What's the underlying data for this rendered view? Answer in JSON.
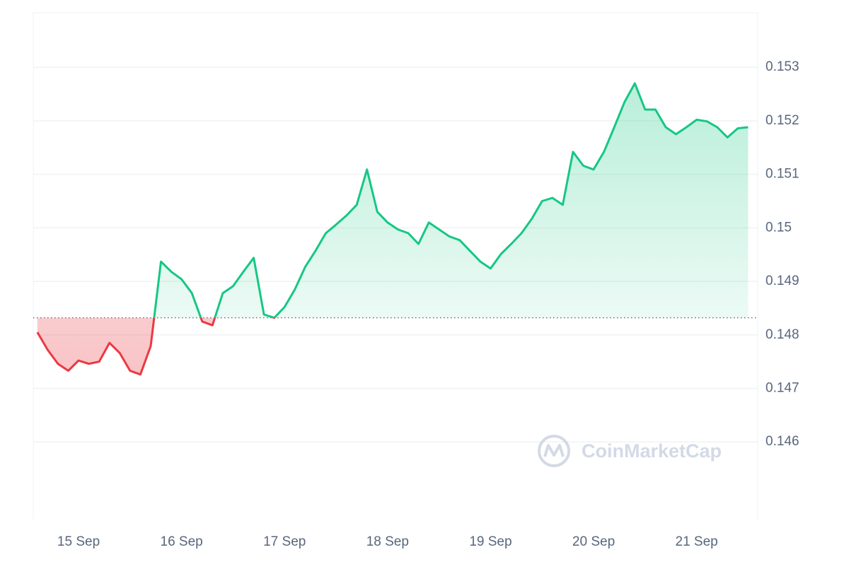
{
  "chart_data": {
    "type": "line",
    "categories": [
      null,
      null,
      null,
      null,
      "15 Sep",
      null,
      null,
      null,
      null,
      null,
      null,
      null,
      null,
      null,
      "16 Sep",
      null,
      null,
      null,
      null,
      null,
      null,
      null,
      null,
      null,
      "17 Sep",
      null,
      null,
      null,
      null,
      null,
      null,
      null,
      null,
      null,
      "18 Sep",
      null,
      null,
      null,
      null,
      null,
      null,
      null,
      null,
      null,
      "19 Sep",
      null,
      null,
      null,
      null,
      null,
      null,
      null,
      null,
      null,
      "20 Sep",
      null,
      null,
      null,
      null,
      null,
      null,
      null,
      null,
      null,
      "21 Sep",
      null,
      null,
      null,
      null,
      null
    ],
    "values": [
      0.14805,
      0.14772,
      0.14746,
      0.14733,
      0.14752,
      0.14746,
      0.1475,
      0.14785,
      0.14766,
      0.14733,
      0.14726,
      0.14779,
      0.14937,
      0.14918,
      0.14904,
      0.14878,
      0.14825,
      0.14818,
      0.14878,
      0.14891,
      0.14918,
      0.14944,
      0.14838,
      0.14832,
      0.14852,
      0.14885,
      0.14927,
      0.14957,
      0.1499,
      0.15006,
      0.15023,
      0.15043,
      0.15109,
      0.1503,
      0.1501,
      0.14997,
      0.1499,
      0.1497,
      0.1501,
      0.14997,
      0.14984,
      0.14977,
      0.14957,
      0.14937,
      0.14924,
      0.14951,
      0.1497,
      0.1499,
      0.15017,
      0.1505,
      0.15056,
      0.15043,
      0.15142,
      0.15116,
      0.15109,
      0.15142,
      0.15188,
      0.15235,
      0.1527,
      0.15221,
      0.15221,
      0.15188,
      0.15175,
      0.15188,
      0.15202,
      0.15199,
      0.15188,
      0.15169,
      0.15186,
      0.15188
    ],
    "baseline": 0.14832,
    "color_up": "#16c784",
    "color_down": "#ea3943",
    "ylim": [
      0.14455,
      0.15402
    ],
    "yticks": [
      0.146,
      0.147,
      0.148,
      0.149,
      0.15,
      0.151,
      0.152,
      0.153
    ],
    "grid": true,
    "watermark": "CoinMarketCap"
  }
}
